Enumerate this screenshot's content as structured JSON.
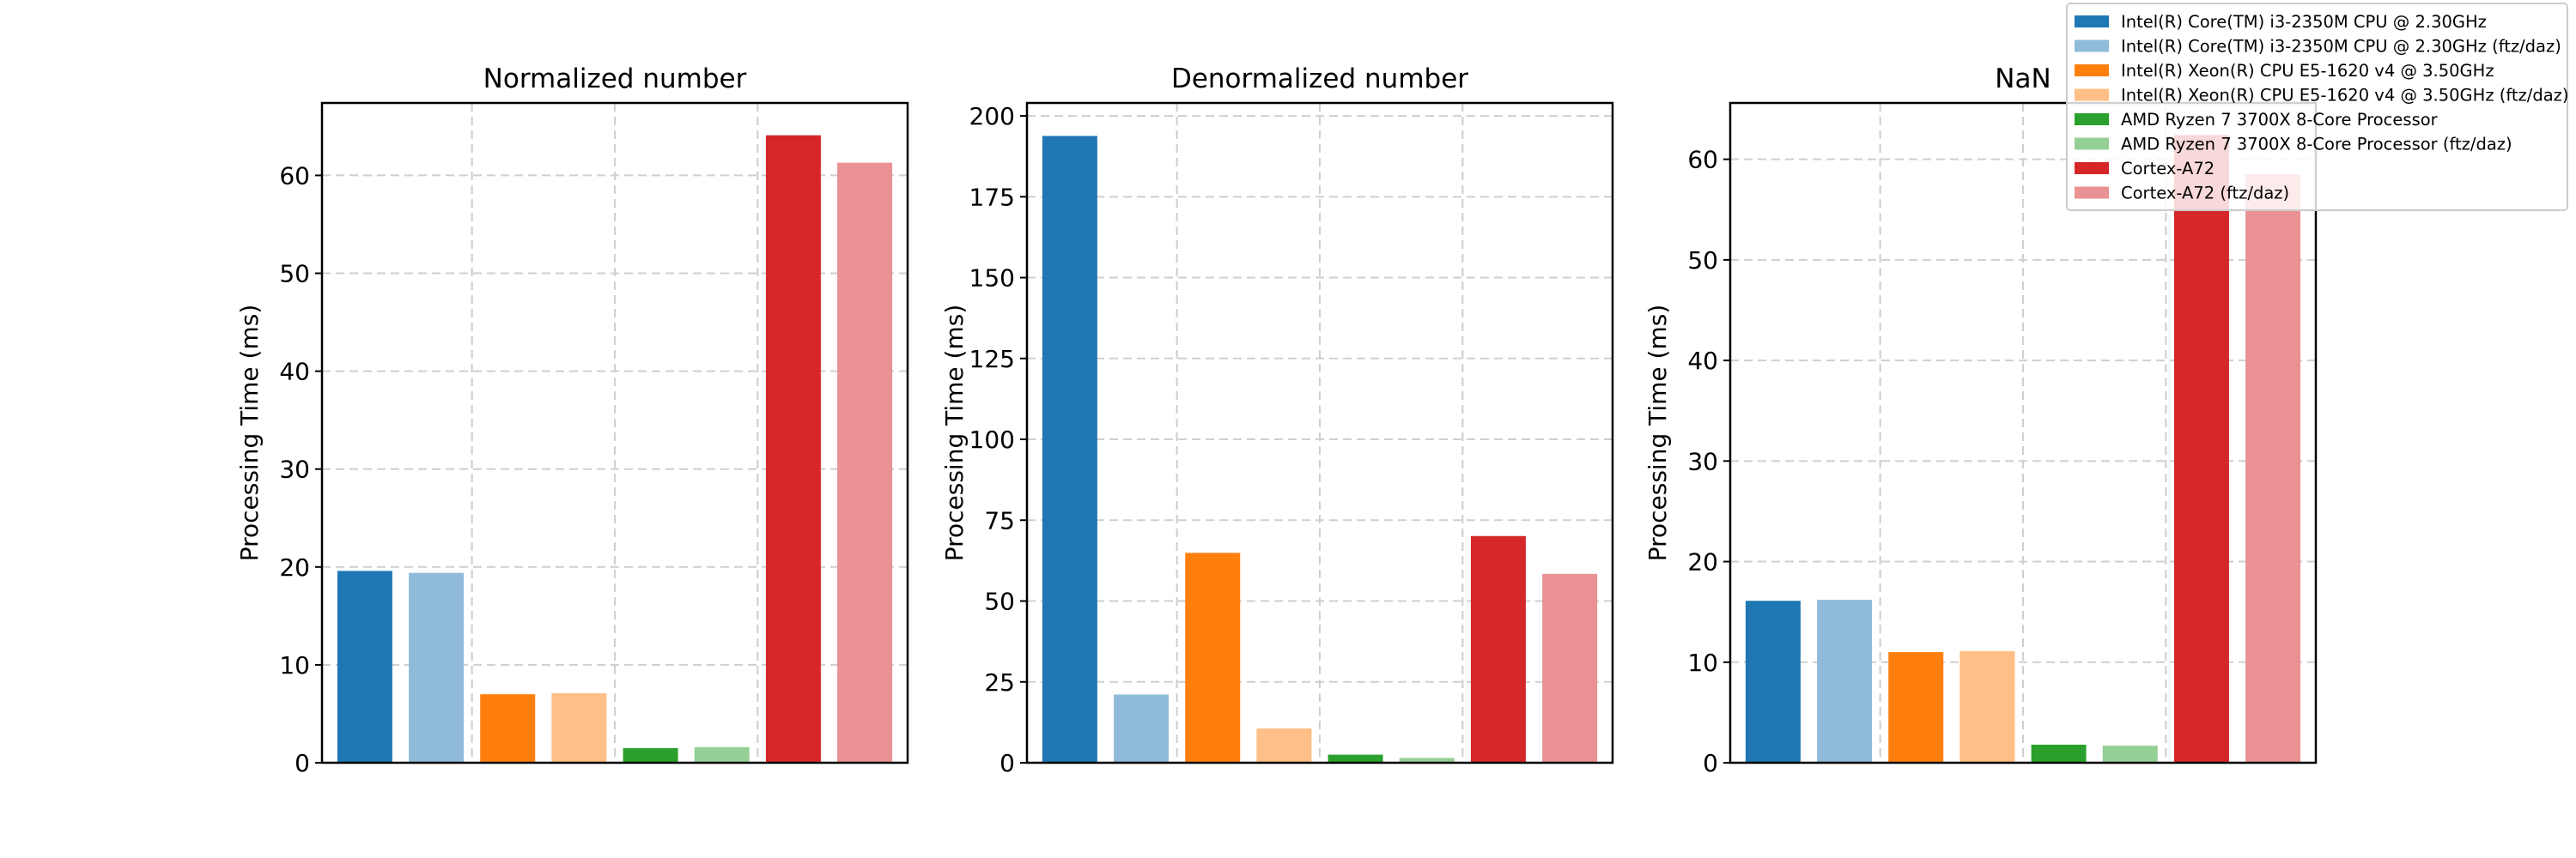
{
  "figure": {
    "legend_location": "upper-right"
  },
  "chart_data": [
    {
      "type": "bar",
      "title": "Normalized number",
      "ylabel": "Processing Time (ms)",
      "xlabel": "",
      "ylim": [
        0,
        67.4
      ],
      "yticks": [
        "0",
        "10",
        "20",
        "30",
        "40",
        "50",
        "60"
      ],
      "grid": true,
      "values": [
        19.6,
        19.4,
        7.0,
        7.1,
        1.5,
        1.6,
        64.1,
        61.3
      ]
    },
    {
      "type": "bar",
      "title": "Denormalized number",
      "ylabel": "Processing Time (ms)",
      "xlabel": "",
      "ylim": [
        0,
        204
      ],
      "yticks": [
        "0",
        "25",
        "50",
        "75",
        "100",
        "125",
        "150",
        "175",
        "200"
      ],
      "grid": true,
      "values": [
        193.8,
        21.1,
        64.9,
        10.6,
        2.5,
        1.5,
        70.1,
        58.4
      ]
    },
    {
      "type": "bar",
      "title": "NaN",
      "ylabel": "Processing Time (ms)",
      "xlabel": "",
      "ylim": [
        0,
        65.6
      ],
      "yticks": [
        "0",
        "10",
        "20",
        "30",
        "40",
        "50",
        "60"
      ],
      "grid": true,
      "values": [
        16.1,
        16.2,
        11.0,
        11.1,
        1.8,
        1.7,
        62.4,
        58.5
      ]
    }
  ],
  "series": [
    {
      "name": "Intel(R) Core(TM) i3-2350M CPU @ 2.30GHz",
      "color": "#1f77b4"
    },
    {
      "name": "Intel(R) Core(TM) i3-2350M CPU @ 2.30GHz (ftz/daz)",
      "color": "#8fbbd9"
    },
    {
      "name": "Intel(R) Xeon(R) CPU E5-1620 v4 @ 3.50GHz",
      "color": "#ff7f0e"
    },
    {
      "name": "Intel(R) Xeon(R) CPU E5-1620 v4 @ 3.50GHz (ftz/daz)",
      "color": "#ffbf86"
    },
    {
      "name": "AMD Ryzen 7 3700X 8-Core Processor",
      "color": "#2ca02c"
    },
    {
      "name": "AMD Ryzen 7 3700X 8-Core Processor (ftz/daz)",
      "color": "#95cf95"
    },
    {
      "name": "Cortex-A72",
      "color": "#d62728"
    },
    {
      "name": "Cortex-A72 (ftz/daz)",
      "color": "#ea9293"
    }
  ]
}
